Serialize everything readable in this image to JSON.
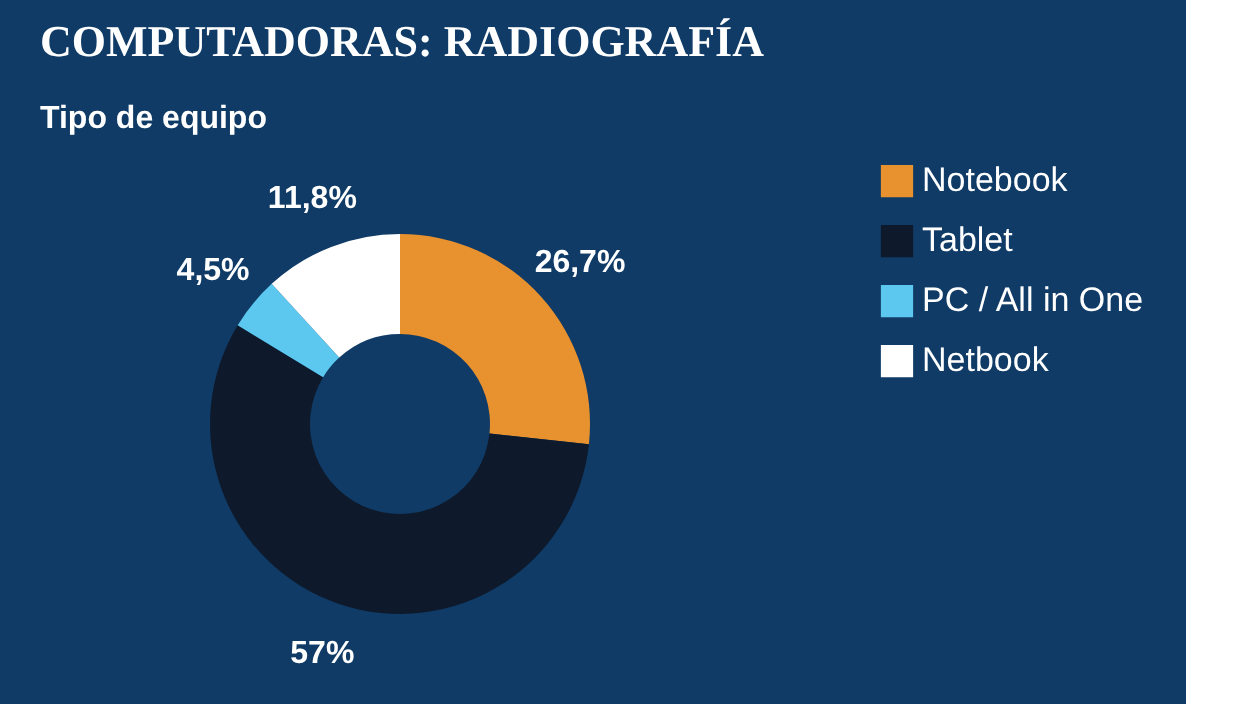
{
  "chart_data": {
    "type": "donut",
    "title": "COMPUTADORAS: RADIOGRAFÍA",
    "subtitle": "Tipo de equipo",
    "categories": [
      "Notebook",
      "Tablet",
      "PC / All in One",
      "Netbook"
    ],
    "values": [
      26.7,
      57,
      4.5,
      11.8
    ],
    "value_labels": [
      "26,7%",
      "57%",
      "4,5%",
      "11,8%"
    ],
    "colors": [
      "#e8912f",
      "#0e1a2c",
      "#5cc8f0",
      "#ffffff"
    ],
    "legend": "right"
  }
}
